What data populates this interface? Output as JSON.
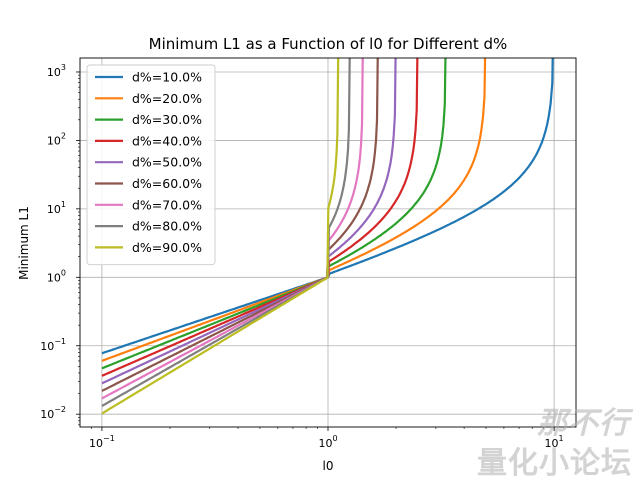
{
  "chart_data": {
    "type": "line",
    "title": "Minimum L1 as a Function of l0 for Different d%",
    "xlabel": "l0",
    "ylabel": "Minimum L1",
    "xscale": "log",
    "yscale": "log",
    "xlim": [
      0.08,
      12.5
    ],
    "ylim": [
      0.0065,
      1600
    ],
    "grid": true,
    "legend_position": "upper-left",
    "x_ticks": [
      {
        "base": "10",
        "exp": "−1",
        "value": 0.1
      },
      {
        "base": "10",
        "exp": "0",
        "value": 1
      },
      {
        "base": "10",
        "exp": "1",
        "value": 10
      }
    ],
    "y_ticks": [
      {
        "base": "10",
        "exp": "−2",
        "value": 0.01
      },
      {
        "base": "10",
        "exp": "−1",
        "value": 0.1
      },
      {
        "base": "10",
        "exp": "0",
        "value": 1
      },
      {
        "base": "10",
        "exp": "1",
        "value": 10
      },
      {
        "base": "10",
        "exp": "2",
        "value": 100
      },
      {
        "base": "10",
        "exp": "3",
        "value": 1000
      }
    ],
    "series": [
      {
        "name": "d%=10.0%",
        "d": 0.1,
        "color": "#1f77b4"
      },
      {
        "name": "d%=20.0%",
        "d": 0.2,
        "color": "#ff7f0e"
      },
      {
        "name": "d%=30.0%",
        "d": 0.3,
        "color": "#2ca02c"
      },
      {
        "name": "d%=40.0%",
        "d": 0.4,
        "color": "#d62728"
      },
      {
        "name": "d%=50.0%",
        "d": 0.5,
        "color": "#9467bd"
      },
      {
        "name": "d%=60.0%",
        "d": 0.6,
        "color": "#8c564b"
      },
      {
        "name": "d%=70.0%",
        "d": 0.7,
        "color": "#e377c2"
      },
      {
        "name": "d%=80.0%",
        "d": 0.8,
        "color": "#7f7f7f"
      },
      {
        "name": "d%=90.0%",
        "d": 0.9,
        "color": "#bcbd22"
      }
    ]
  },
  "watermark": {
    "line1": "那不行",
    "line2": "量化小论坛"
  }
}
